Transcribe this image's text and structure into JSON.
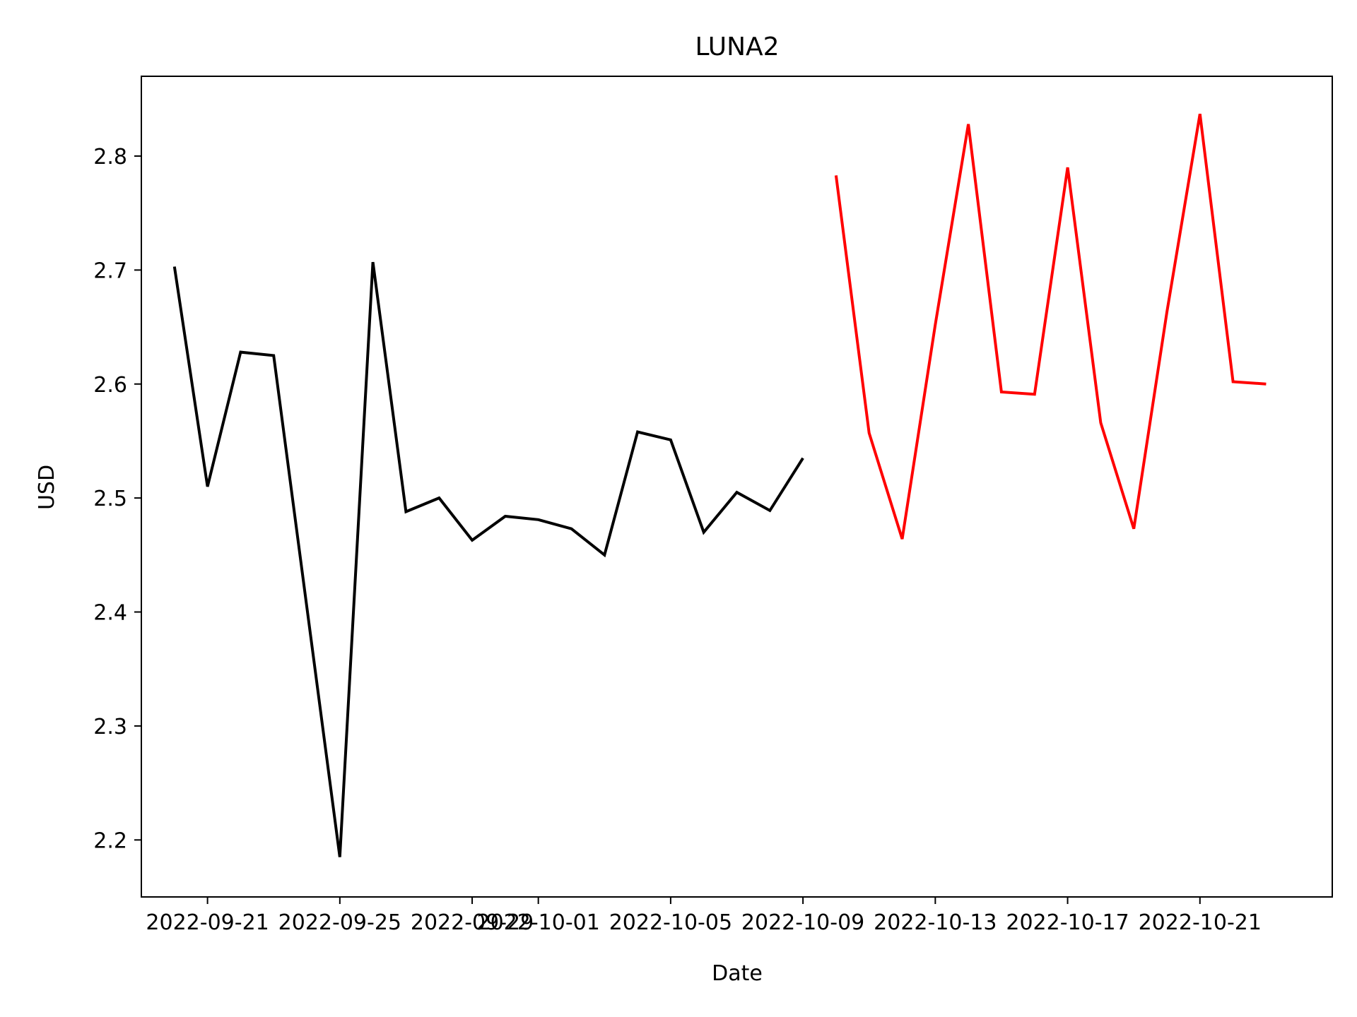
{
  "chart_data": {
    "type": "line",
    "title": "LUNA2",
    "xlabel": "Date",
    "ylabel": "USD",
    "xlim": [
      "2022-09-19",
      "2022-10-25"
    ],
    "ylim": [
      2.15,
      2.87
    ],
    "grid": false,
    "x_ticks": [
      "2022-09-21",
      "2022-09-25",
      "2022-09-29",
      "2022-10-01",
      "2022-10-05",
      "2022-10-09",
      "2022-10-13",
      "2022-10-17",
      "2022-10-21"
    ],
    "y_ticks": [
      2.2,
      2.3,
      2.4,
      2.5,
      2.6,
      2.7,
      2.8
    ],
    "y_tick_labels": [
      "2.2",
      "2.3",
      "2.4",
      "2.5",
      "2.6",
      "2.7",
      "2.8"
    ],
    "series": [
      {
        "color": "#000000",
        "x": [
          "2022-09-20",
          "2022-09-21",
          "2022-09-22",
          "2022-09-23",
          "2022-09-24",
          "2022-09-25",
          "2022-09-26",
          "2022-09-27",
          "2022-09-28",
          "2022-09-29",
          "2022-09-30",
          "2022-10-01",
          "2022-10-02",
          "2022-10-03",
          "2022-10-04",
          "2022-10-05",
          "2022-10-06",
          "2022-10-07",
          "2022-10-08",
          "2022-10-09"
        ],
        "values": [
          2.703,
          2.51,
          2.628,
          2.625,
          2.405,
          2.185,
          2.707,
          2.488,
          2.5,
          2.463,
          2.484,
          2.481,
          2.473,
          2.45,
          2.558,
          2.551,
          2.47,
          2.505,
          2.489,
          2.535
        ]
      },
      {
        "color": "#ff0000",
        "x": [
          "2022-10-10",
          "2022-10-11",
          "2022-10-12",
          "2022-10-13",
          "2022-10-14",
          "2022-10-15",
          "2022-10-16",
          "2022-10-17",
          "2022-10-18",
          "2022-10-19",
          "2022-10-20",
          "2022-10-21",
          "2022-10-22",
          "2022-10-23"
        ],
        "values": [
          2.783,
          2.557,
          2.464,
          2.652,
          2.828,
          2.593,
          2.591,
          2.79,
          2.566,
          2.473,
          2.663,
          2.837,
          2.602,
          2.6
        ]
      }
    ]
  }
}
